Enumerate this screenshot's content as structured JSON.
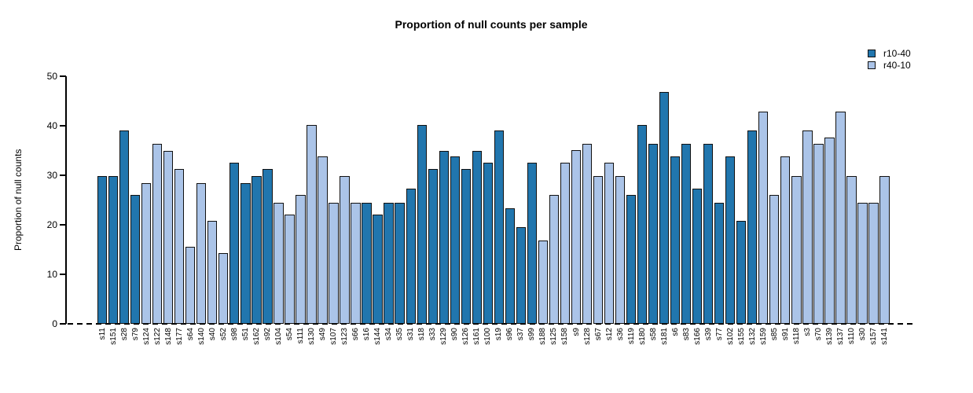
{
  "title": "Proportion of null counts per sample",
  "y_axis": {
    "label": "Proportion of null counts"
  },
  "legend": [
    {
      "label": "r10-40",
      "color": "#2176ae"
    },
    {
      "label": "r40-10",
      "color": "#abc4e8"
    }
  ],
  "chart_data": {
    "type": "bar",
    "title": "Proportion of null counts per sample",
    "xlabel": "",
    "ylabel": "Proportion of null counts",
    "ylim": [
      0,
      50
    ],
    "yticks": [
      0,
      10,
      20,
      30,
      40,
      50
    ],
    "grid": false,
    "legend_position": "top-right",
    "zero_line_style": "dashed",
    "series_colors": {
      "r10-40": "#2176ae",
      "r40-10": "#abc4e8"
    },
    "bars": [
      {
        "label": "s11",
        "value": 29.8,
        "series": "r10-40"
      },
      {
        "label": "s151",
        "value": 29.8,
        "series": "r10-40"
      },
      {
        "label": "s28",
        "value": 39.0,
        "series": "r10-40"
      },
      {
        "label": "s79",
        "value": 26.0,
        "series": "r10-40"
      },
      {
        "label": "s124",
        "value": 28.5,
        "series": "r40-10"
      },
      {
        "label": "s122",
        "value": 36.4,
        "series": "r40-10"
      },
      {
        "label": "s148",
        "value": 35.0,
        "series": "r40-10"
      },
      {
        "label": "s177",
        "value": 31.2,
        "series": "r40-10"
      },
      {
        "label": "s64",
        "value": 15.6,
        "series": "r40-10"
      },
      {
        "label": "s140",
        "value": 28.5,
        "series": "r40-10"
      },
      {
        "label": "s40",
        "value": 20.8,
        "series": "r40-10"
      },
      {
        "label": "s52",
        "value": 14.3,
        "series": "r40-10"
      },
      {
        "label": "s98",
        "value": 32.5,
        "series": "r10-40"
      },
      {
        "label": "s51",
        "value": 28.5,
        "series": "r10-40"
      },
      {
        "label": "s162",
        "value": 29.8,
        "series": "r10-40"
      },
      {
        "label": "s92",
        "value": 31.2,
        "series": "r10-40"
      },
      {
        "label": "s104",
        "value": 24.5,
        "series": "r40-10"
      },
      {
        "label": "s54",
        "value": 22.1,
        "series": "r40-10"
      },
      {
        "label": "s111",
        "value": 26.0,
        "series": "r40-10"
      },
      {
        "label": "s130",
        "value": 40.2,
        "series": "r40-10"
      },
      {
        "label": "s49",
        "value": 33.8,
        "series": "r40-10"
      },
      {
        "label": "s107",
        "value": 24.5,
        "series": "r40-10"
      },
      {
        "label": "s123",
        "value": 29.8,
        "series": "r40-10"
      },
      {
        "label": "s66",
        "value": 24.5,
        "series": "r40-10"
      },
      {
        "label": "s16",
        "value": 24.5,
        "series": "r10-40"
      },
      {
        "label": "s144",
        "value": 22.1,
        "series": "r10-40"
      },
      {
        "label": "s34",
        "value": 24.5,
        "series": "r10-40"
      },
      {
        "label": "s35",
        "value": 24.5,
        "series": "r10-40"
      },
      {
        "label": "s31",
        "value": 27.3,
        "series": "r10-40"
      },
      {
        "label": "s18",
        "value": 40.2,
        "series": "r10-40"
      },
      {
        "label": "s33",
        "value": 31.2,
        "series": "r10-40"
      },
      {
        "label": "s129",
        "value": 35.0,
        "series": "r10-40"
      },
      {
        "label": "s90",
        "value": 33.8,
        "series": "r10-40"
      },
      {
        "label": "s126",
        "value": 31.2,
        "series": "r10-40"
      },
      {
        "label": "s161",
        "value": 35.0,
        "series": "r10-40"
      },
      {
        "label": "s100",
        "value": 32.5,
        "series": "r10-40"
      },
      {
        "label": "s19",
        "value": 39.0,
        "series": "r10-40"
      },
      {
        "label": "s96",
        "value": 23.3,
        "series": "r10-40"
      },
      {
        "label": "s37",
        "value": 19.5,
        "series": "r10-40"
      },
      {
        "label": "s99",
        "value": 32.5,
        "series": "r10-40"
      },
      {
        "label": "s188",
        "value": 16.8,
        "series": "r40-10"
      },
      {
        "label": "s125",
        "value": 26.0,
        "series": "r40-10"
      },
      {
        "label": "s158",
        "value": 32.5,
        "series": "r40-10"
      },
      {
        "label": "s9",
        "value": 35.1,
        "series": "r40-10"
      },
      {
        "label": "s128",
        "value": 36.4,
        "series": "r40-10"
      },
      {
        "label": "s67",
        "value": 29.8,
        "series": "r40-10"
      },
      {
        "label": "s12",
        "value": 32.5,
        "series": "r40-10"
      },
      {
        "label": "s36",
        "value": 29.8,
        "series": "r40-10"
      },
      {
        "label": "s119",
        "value": 26.0,
        "series": "r10-40"
      },
      {
        "label": "s180",
        "value": 40.2,
        "series": "r10-40"
      },
      {
        "label": "s58",
        "value": 36.4,
        "series": "r10-40"
      },
      {
        "label": "s181",
        "value": 46.8,
        "series": "r10-40"
      },
      {
        "label": "s6",
        "value": 33.8,
        "series": "r10-40"
      },
      {
        "label": "s83",
        "value": 36.4,
        "series": "r10-40"
      },
      {
        "label": "s166",
        "value": 27.3,
        "series": "r10-40"
      },
      {
        "label": "s39",
        "value": 36.4,
        "series": "r10-40"
      },
      {
        "label": "s77",
        "value": 24.5,
        "series": "r10-40"
      },
      {
        "label": "s102",
        "value": 33.8,
        "series": "r10-40"
      },
      {
        "label": "s155",
        "value": 20.8,
        "series": "r10-40"
      },
      {
        "label": "s132",
        "value": 39.0,
        "series": "r10-40"
      },
      {
        "label": "s159",
        "value": 42.8,
        "series": "r40-10"
      },
      {
        "label": "s85",
        "value": 26.0,
        "series": "r40-10"
      },
      {
        "label": "s91",
        "value": 33.8,
        "series": "r40-10"
      },
      {
        "label": "s118",
        "value": 29.8,
        "series": "r40-10"
      },
      {
        "label": "s3",
        "value": 39.0,
        "series": "r40-10"
      },
      {
        "label": "s70",
        "value": 36.4,
        "series": "r40-10"
      },
      {
        "label": "s139",
        "value": 37.6,
        "series": "r40-10"
      },
      {
        "label": "s137",
        "value": 42.8,
        "series": "r40-10"
      },
      {
        "label": "s110",
        "value": 29.8,
        "series": "r40-10"
      },
      {
        "label": "s30",
        "value": 24.5,
        "series": "r40-10"
      },
      {
        "label": "s157",
        "value": 24.5,
        "series": "r40-10"
      },
      {
        "label": "s141",
        "value": 29.8,
        "series": "r40-10"
      }
    ]
  }
}
